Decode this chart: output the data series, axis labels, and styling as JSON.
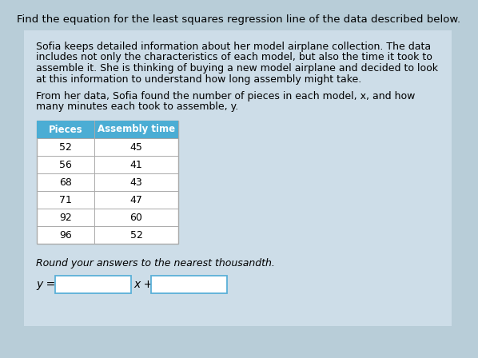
{
  "title": "Find the equation for the least squares regression line of the data described below.",
  "paragraph1_lines": [
    "Sofia keeps detailed information about her model airplane collection. The data",
    "includes not only the characteristics of each model, but also the time it took to",
    "assemble it. She is thinking of buying a new model airplane and decided to look",
    "at this information to understand how long assembly might take."
  ],
  "paragraph2_lines": [
    "From her data, Sofia found the number of pieces in each model, x, and how",
    "many minutes each took to assemble, y."
  ],
  "table_headers": [
    "Pieces",
    "Assembly time"
  ],
  "table_data": [
    [
      52,
      45
    ],
    [
      56,
      41
    ],
    [
      68,
      43
    ],
    [
      71,
      47
    ],
    [
      92,
      60
    ],
    [
      96,
      52
    ]
  ],
  "footer_italic": "Round your answers to the nearest thousandth.",
  "equation_label": "y =",
  "equation_middle": "x +",
  "header_bg_color": "#4badd4",
  "header_text_color": "#ffffff",
  "table_border_color": "#aaaaaa",
  "inner_bg_color": "#cddde8",
  "outer_bg_color": "#b8cdd8",
  "body_font_size": 9.0,
  "title_font_size": 9.5
}
